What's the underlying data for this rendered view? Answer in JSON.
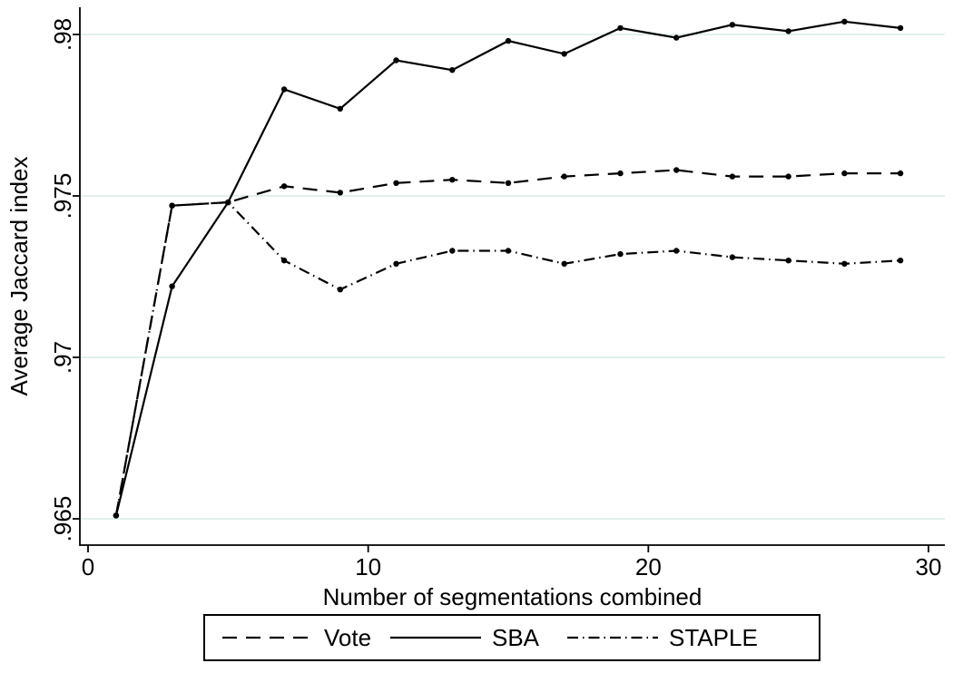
{
  "chart_data": {
    "type": "line",
    "title": "",
    "xlabel": "Number of segmentations combined",
    "ylabel": "Average Jaccard index",
    "xlim": [
      0,
      30
    ],
    "ylim": [
      0.965,
      0.98
    ],
    "xticks": [
      0,
      10,
      20,
      30
    ],
    "xtick_labels": [
      "0",
      "10",
      "20",
      "30"
    ],
    "yticks": [
      0.965,
      0.97,
      0.975,
      0.98
    ],
    "ytick_labels": [
      ".965",
      ".97",
      ".975",
      ".98"
    ],
    "grid": "horizontal",
    "legend_position": "bottom",
    "colors": {
      "line": "#000000",
      "grid": "#d9ece7",
      "background": "#ffffff",
      "legend_border": "#000000"
    },
    "x": [
      1,
      3,
      5,
      7,
      9,
      11,
      13,
      15,
      17,
      19,
      21,
      23,
      25,
      27,
      29
    ],
    "series": [
      {
        "name": "Vote",
        "line_style": "dash",
        "values": [
          0.9651,
          0.9747,
          0.9748,
          0.9753,
          0.9751,
          0.9754,
          0.9755,
          0.9754,
          0.9756,
          0.9757,
          0.9758,
          0.9756,
          0.9756,
          0.9757,
          0.9757
        ]
      },
      {
        "name": "SBA",
        "line_style": "solid",
        "values": [
          0.9651,
          0.9722,
          0.9748,
          0.9783,
          0.9777,
          0.9792,
          0.9789,
          0.9798,
          0.9794,
          0.9802,
          0.9799,
          0.9803,
          0.9801,
          0.9804,
          0.9802
        ]
      },
      {
        "name": "STAPLE",
        "line_style": "dash-dot",
        "values": [
          0.9651,
          0.9747,
          0.9748,
          0.973,
          0.9721,
          0.9729,
          0.9733,
          0.9733,
          0.9729,
          0.9732,
          0.9733,
          0.9731,
          0.973,
          0.9729,
          0.973
        ]
      }
    ]
  }
}
